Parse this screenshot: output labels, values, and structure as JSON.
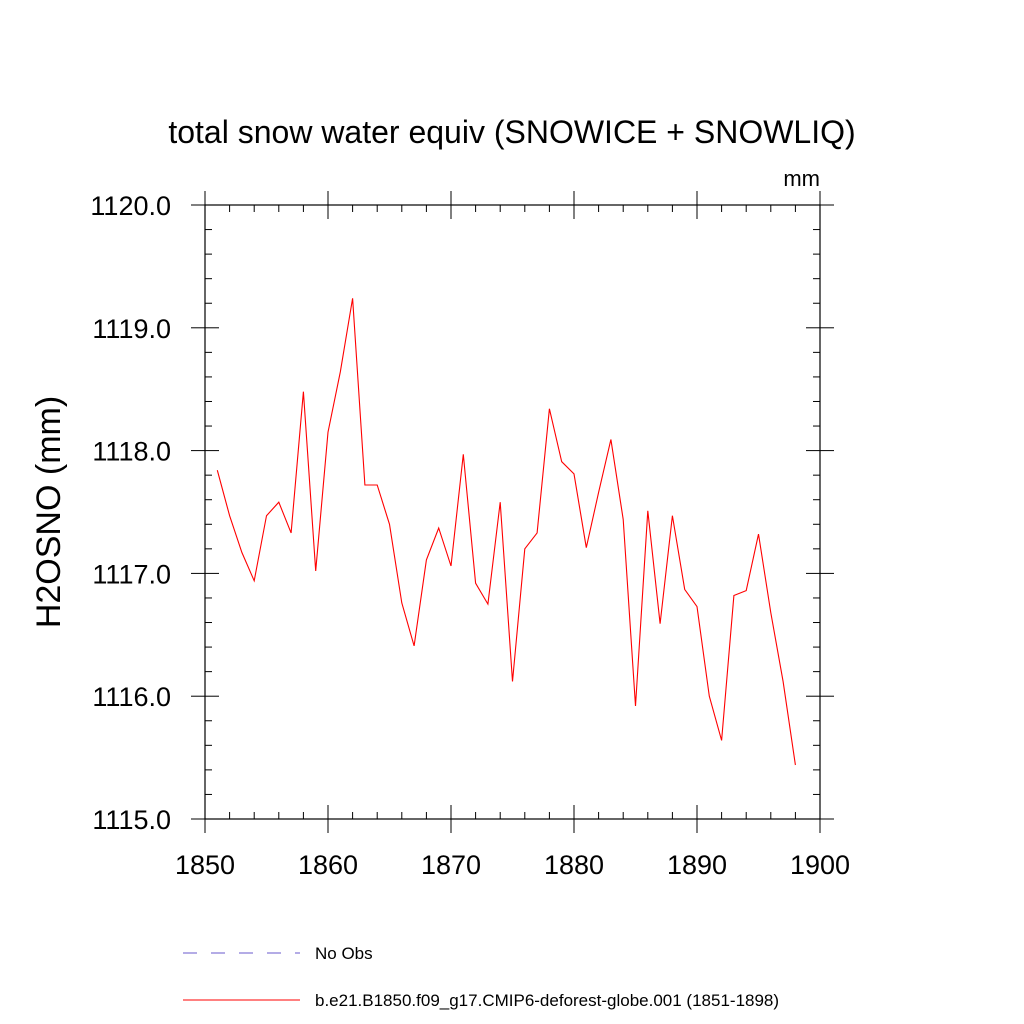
{
  "chart_data": {
    "type": "line",
    "title": "total snow water equiv (SNOWICE + SNOWLIQ)",
    "units": "mm",
    "xlabel": "",
    "ylabel": "H2OSNO  (mm)",
    "xlim": [
      1850,
      1900
    ],
    "ylim": [
      1115.0,
      1120.0
    ],
    "xticks": [
      1850,
      1860,
      1870,
      1880,
      1890,
      1900
    ],
    "yticks": [
      "1115.0",
      "1116.0",
      "1117.0",
      "1118.0",
      "1119.0",
      "1120.0"
    ],
    "grid": false,
    "series": [
      {
        "name": "b.e21.B1850.f09_g17.CMIP6-deforest-globe.001 (1851-1898)",
        "color": "#ff0000",
        "style": "solid",
        "x": [
          1851,
          1852,
          1853,
          1854,
          1855,
          1856,
          1857,
          1858,
          1859,
          1860,
          1861,
          1862,
          1863,
          1864,
          1865,
          1866,
          1867,
          1868,
          1869,
          1870,
          1871,
          1872,
          1873,
          1874,
          1875,
          1876,
          1877,
          1878,
          1879,
          1880,
          1881,
          1882,
          1883,
          1884,
          1885,
          1886,
          1887,
          1888,
          1889,
          1890,
          1891,
          1892,
          1893,
          1894,
          1895,
          1896,
          1897,
          1898
        ],
        "values": [
          1117.84,
          1117.47,
          1117.17,
          1116.94,
          1117.47,
          1117.58,
          1117.33,
          1118.48,
          1117.02,
          1118.15,
          1118.64,
          1119.24,
          1117.72,
          1117.72,
          1117.4,
          1116.76,
          1116.41,
          1117.11,
          1117.37,
          1117.06,
          1117.97,
          1116.92,
          1116.75,
          1117.58,
          1116.12,
          1117.2,
          1117.33,
          1118.34,
          1117.91,
          1117.81,
          1117.21,
          1117.66,
          1118.09,
          1117.44,
          1115.92,
          1117.51,
          1116.59,
          1117.47,
          1116.87,
          1116.73,
          1116.0,
          1115.64,
          1116.82,
          1116.86,
          1117.32,
          1116.68,
          1116.12,
          1115.44
        ]
      }
    ],
    "legend": [
      {
        "label": "No Obs",
        "color": "#6a5acd",
        "style": "dashed"
      },
      {
        "label": "b.e21.B1850.f09_g17.CMIP6-deforest-globe.001 (1851-1898)",
        "color": "#ff0000",
        "style": "solid"
      }
    ]
  }
}
